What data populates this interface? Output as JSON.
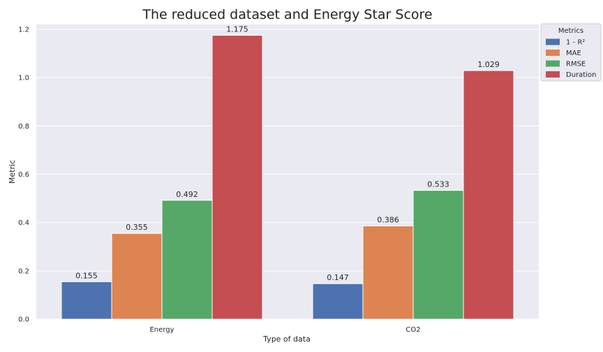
{
  "chart_data": {
    "type": "bar",
    "title": "The reduced dataset and Energy Star Score",
    "xlabel": "Type of data",
    "ylabel": "Metric",
    "categories": [
      "Energy",
      "CO2"
    ],
    "series": [
      {
        "name": "1 - R²",
        "values": [
          0.155,
          0.147
        ],
        "color": "#4c72b0"
      },
      {
        "name": "MAE",
        "values": [
          0.355,
          0.386
        ],
        "color": "#dd8452"
      },
      {
        "name": "RMSE",
        "values": [
          0.492,
          0.533
        ],
        "color": "#55a868"
      },
      {
        "name": "Duration",
        "values": [
          1.175,
          1.029
        ],
        "color": "#c44e52"
      }
    ],
    "data_labels": [
      [
        "0.155",
        "0.147"
      ],
      [
        "0.355",
        "0.386"
      ],
      [
        "0.492",
        "0.533"
      ],
      [
        "1.175",
        "1.029"
      ]
    ],
    "ylim": [
      0,
      1.22
    ],
    "yticks": [
      0.0,
      0.2,
      0.4,
      0.6,
      0.8,
      1.0,
      1.2
    ],
    "ytick_labels": [
      "0.0",
      "0.2",
      "0.4",
      "0.6",
      "0.8",
      "1.0",
      "1.2"
    ],
    "grid": true,
    "legend": {
      "title": "Metrics",
      "placement": "outside-top-right"
    },
    "colors": {
      "plot_background": "#eaeaf2",
      "grid": "#ffffff"
    }
  }
}
